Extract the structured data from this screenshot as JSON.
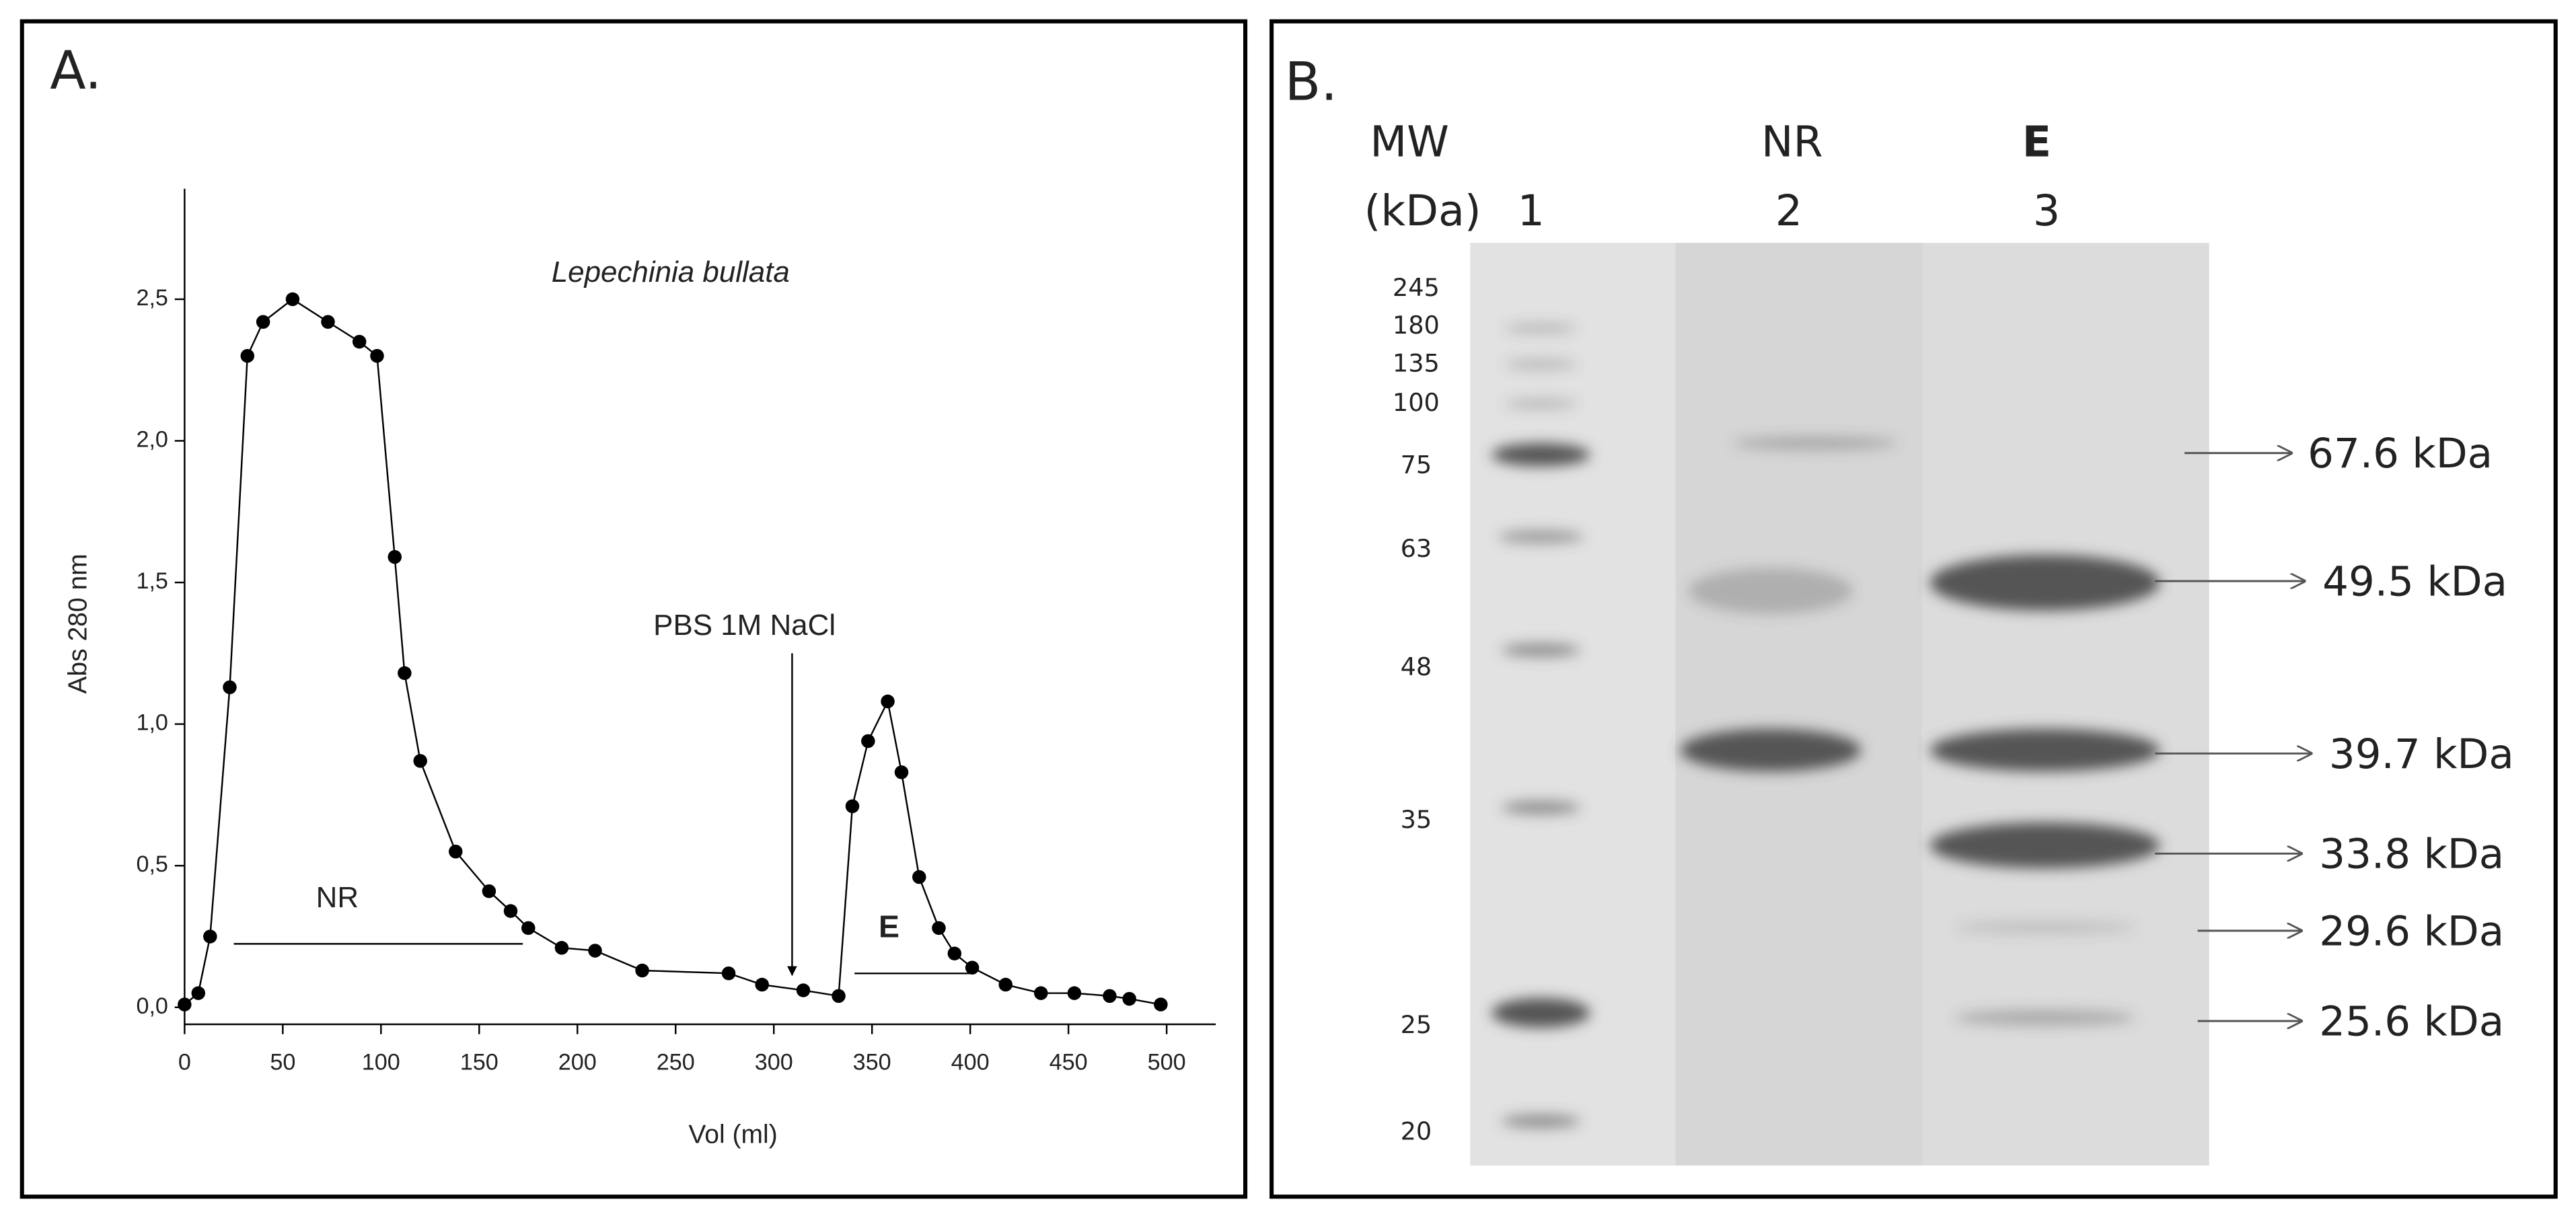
{
  "chart_data": [
    {
      "type": "line",
      "panel": "A.",
      "title": "Lepechinia bullata",
      "x_label": "Vol (ml)",
      "y_label": "Abs 280 nm",
      "x": [
        0,
        7,
        13,
        23,
        32,
        40,
        55,
        73,
        89,
        98,
        107,
        112,
        120,
        138,
        155,
        166,
        175,
        192,
        209,
        233,
        277,
        294,
        315,
        333,
        340,
        348,
        358,
        365,
        374,
        384,
        392,
        401,
        418,
        436,
        453,
        471,
        481,
        497
      ],
      "series": [
        {
          "color": "#000000",
          "values": [
            0.01,
            0.05,
            0.25,
            1.13,
            2.3,
            2.42,
            2.5,
            2.42,
            2.35,
            2.3,
            1.59,
            1.18,
            0.87,
            0.55,
            0.41,
            0.34,
            0.28,
            0.21,
            0.2,
            0.13,
            0.12,
            0.08,
            0.06,
            0.04,
            0.71,
            0.94,
            1.08,
            0.83,
            0.46,
            0.28,
            0.19,
            0.14,
            0.08,
            0.05,
            0.05,
            0.04,
            0.03,
            0.01
          ]
        }
      ],
      "xlim": [
        0,
        525
      ],
      "ylim": [
        -0.06,
        2.89
      ],
      "xticks": [
        0,
        50,
        100,
        150,
        200,
        250,
        300,
        350,
        400,
        450,
        500
      ],
      "yticks": [
        {
          "value": 0,
          "label": "0,0"
        },
        {
          "value": 0.5,
          "label": "0,5"
        },
        {
          "value": 1,
          "label": "1,0"
        },
        {
          "value": 1.5,
          "label": "1,5"
        },
        {
          "value": 2,
          "label": "2,0"
        },
        {
          "value": 2.5,
          "label": "2,5"
        }
      ],
      "annotations": [
        "NR",
        "PBS 1M NaCl",
        "E"
      ]
    },
    {
      "type": "gel",
      "panel": "B.",
      "headers": [
        "MW",
        "(kDa)",
        "1",
        "NR",
        "2",
        "E",
        "3"
      ],
      "ladder": [
        245,
        180,
        135,
        100,
        75,
        63,
        48,
        35,
        25,
        20
      ],
      "bands": [
        "67.6 kDa",
        "49.5 kDa",
        "39.7 kDa",
        "33.8 kDa",
        "29.6 kDa",
        "25.6 kDa"
      ]
    }
  ]
}
